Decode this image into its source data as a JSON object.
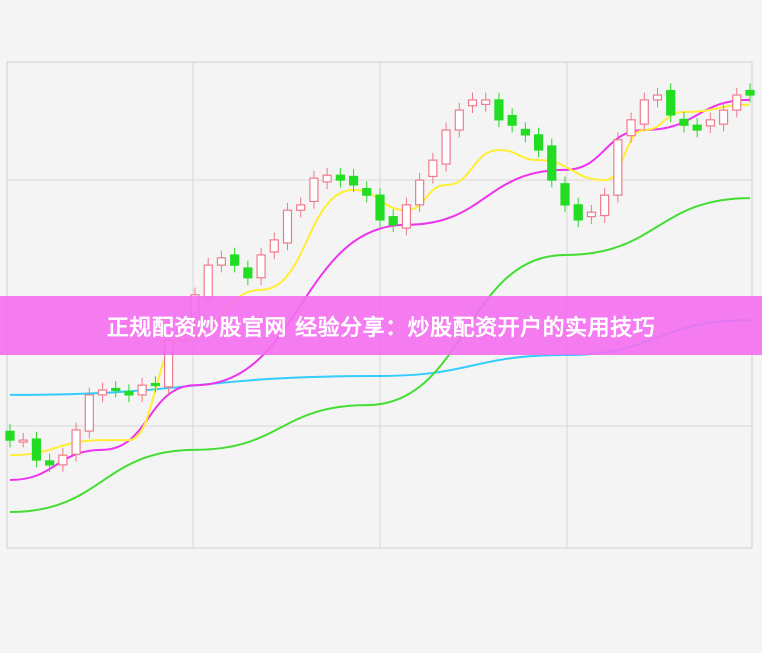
{
  "banner": {
    "title": "正规配资炒股官网 经验分享：炒股配资开户的实用技巧"
  },
  "colors": {
    "up": "#f07a8c",
    "down": "#22dd22",
    "banner": "#f46ef0",
    "ma_cyan": "#33ccff",
    "ma_green": "#44dd33",
    "ma_magenta": "#ee33ee",
    "ma_yellow": "#ffee33"
  },
  "chart_data": {
    "type": "candlestick",
    "title": "",
    "xlabel": "",
    "ylabel": "",
    "ylim": [
      0,
      100
    ],
    "grid": true,
    "close": [
      22.2,
      22.2,
      18.1,
      17.1,
      19.1,
      24.3,
      31.5,
      32.5,
      32.5,
      31.5,
      33.5,
      33.5,
      42.8,
      46.9,
      52.1,
      58.2,
      59.7,
      58.2,
      55.6,
      60.3,
      63.4,
      69.5,
      70.6,
      76.1,
      76.7,
      75.7,
      74.7,
      72.6,
      67.5,
      66.5,
      70.6,
      75.7,
      79.8,
      86.0,
      90.1,
      92.2,
      92.2,
      88.1,
      87.0,
      85.0,
      81.9,
      75.7,
      70.6,
      67.5,
      69.1,
      72.6,
      84.0,
      88.1,
      92.2,
      93.2,
      89.1,
      87.0,
      86.0,
      88.1,
      90.1,
      93.2,
      93.2
    ],
    "open_first": 24.0,
    "series": [
      {
        "color": "#33ccff",
        "x": [
          0,
          28,
          42,
          56
        ],
        "y": [
          31.5,
          35.4,
          39.7,
          46.9
        ]
      },
      {
        "color": "#44dd33",
        "x": [
          0,
          14,
          27,
          42,
          56
        ],
        "y": [
          7.4,
          20.2,
          29.4,
          60.3,
          72.0
        ]
      },
      {
        "color": "#ee33ee",
        "x": [
          0,
          7,
          14,
          30,
          42,
          48,
          56
        ],
        "y": [
          14.0,
          20.2,
          33.5,
          66.5,
          77.8,
          86.0,
          92.2
        ]
      },
      {
        "color": "#ffee33",
        "x": [
          0,
          7,
          9,
          13,
          19,
          26,
          30,
          33,
          37,
          40,
          45,
          48,
          51,
          56
        ],
        "y": [
          19.1,
          22.2,
          22.2,
          42.8,
          53.1,
          73.7,
          69.5,
          74.7,
          81.9,
          79.8,
          75.7,
          86.0,
          89.7,
          91.2
        ]
      }
    ]
  }
}
